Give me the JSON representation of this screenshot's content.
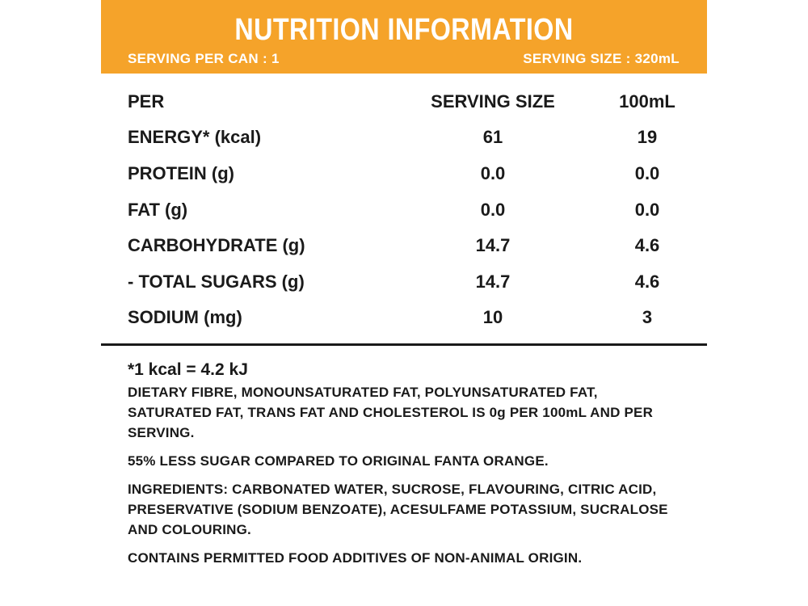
{
  "header": {
    "title": "NUTRITION INFORMATION",
    "serving_per_can": "SERVING PER CAN : 1",
    "serving_size": "SERVING SIZE : 320mL"
  },
  "table": {
    "columns": [
      "PER",
      "SERVING SIZE",
      "100mL"
    ],
    "rows": [
      {
        "name": "ENERGY* (kcal)",
        "serving": "61",
        "per100": "19"
      },
      {
        "name": "PROTEIN (g)",
        "serving": "0.0",
        "per100": "0.0"
      },
      {
        "name": "FAT (g)",
        "serving": "0.0",
        "per100": "0.0"
      },
      {
        "name": "CARBOHYDRATE (g)",
        "serving": "14.7",
        "per100": "4.6"
      },
      {
        "name": "- TOTAL SUGARS (g)",
        "serving": "14.7",
        "per100": "4.6"
      },
      {
        "name": "SODIUM (mg)",
        "serving": "10",
        "per100": "3"
      }
    ]
  },
  "notes": {
    "kcal": "*1 kcal = 4.2 kJ",
    "dietary": "DIETARY FIBRE, MONOUNSATURATED FAT, POLYUNSATURATED FAT, SATURATED FAT, TRANS FAT AND CHOLESTEROL IS 0g PER 100mL AND PER SERVING.",
    "less_sugar": "55% LESS SUGAR COMPARED TO ORIGINAL FANTA ORANGE.",
    "ingredients": "INGREDIENTS: CARBONATED WATER, SUCROSE, FLAVOURING, CITRIC ACID, PRESERVATIVE (SODIUM BENZOATE), ACESULFAME POTASSIUM, SUCRALOSE AND COLOURING.",
    "additives": "CONTAINS PERMITTED FOOD ADDITIVES OF NON-ANIMAL ORIGIN."
  },
  "colors": {
    "header_bg": "#f5a32a",
    "header_text": "#ffffff",
    "body_text": "#1a1a1a"
  }
}
